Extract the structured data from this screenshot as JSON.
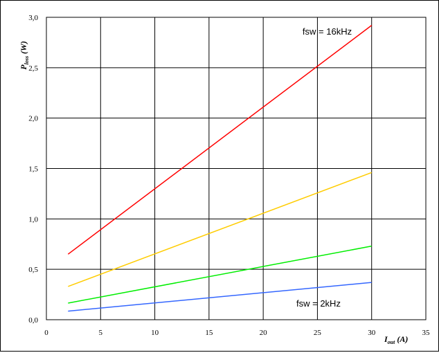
{
  "chart_data": {
    "type": "line",
    "title": "",
    "xlabel": {
      "main": "I",
      "sub": "out",
      "unit": " (A)"
    },
    "ylabel": {
      "main": "P",
      "sub": "loss",
      "unit": " (W)"
    },
    "xlim": [
      0,
      35
    ],
    "ylim": [
      0,
      3.0
    ],
    "x_ticks": [
      0,
      5,
      10,
      15,
      20,
      25,
      30,
      35
    ],
    "y_ticks": [
      "0,0",
      "0,5",
      "1,0",
      "1,5",
      "2,0",
      "2,5",
      "3,0"
    ],
    "grid": true,
    "series": [
      {
        "color": "#ff0000",
        "x": [
          2,
          30
        ],
        "y": [
          0.65,
          2.92
        ]
      },
      {
        "color": "#ffcc00",
        "x": [
          2,
          30
        ],
        "y": [
          0.33,
          1.46
        ]
      },
      {
        "color": "#00ee00",
        "x": [
          2,
          30
        ],
        "y": [
          0.165,
          0.73
        ]
      },
      {
        "color": "#3366ff",
        "x": [
          2,
          30
        ],
        "y": [
          0.085,
          0.37
        ]
      }
    ],
    "annotations": [
      {
        "text": "fsw = 16kHz",
        "x": 25.9,
        "y": 2.83
      },
      {
        "text": "fsw = 2kHz",
        "x": 25.1,
        "y": 0.13
      }
    ]
  }
}
